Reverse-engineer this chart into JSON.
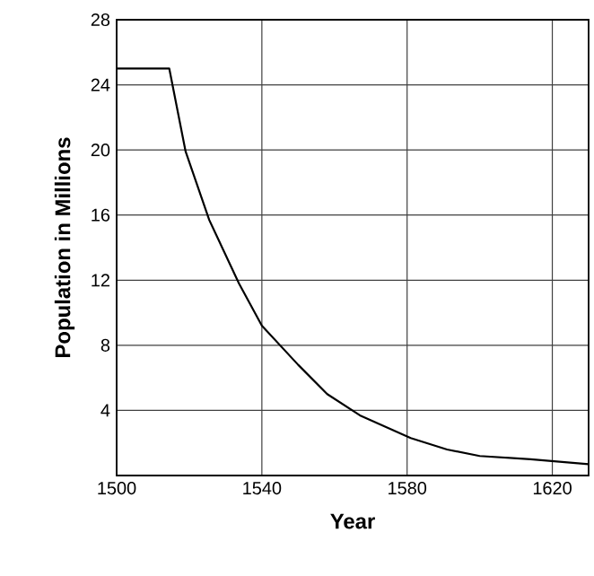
{
  "chart_data": {
    "type": "line",
    "xlabel": "Year",
    "ylabel": "Population in Millions",
    "x": [
      1500,
      1514.5,
      1519,
      1525.5,
      1533.7,
      1540,
      1550,
      1558,
      1567,
      1581,
      1591,
      1600,
      1614,
      1630
    ],
    "values": [
      25,
      25,
      19.9,
      15.7,
      11.8,
      9.2,
      6.8,
      5.0,
      3.7,
      2.3,
      1.6,
      1.2,
      1.0,
      0.7
    ],
    "color": "#000000",
    "xlim": [
      1500,
      1630
    ],
    "ylim": [
      0,
      28
    ],
    "xticks": [
      1500,
      1540,
      1580,
      1620
    ],
    "yticks": [
      4,
      8,
      12,
      16,
      20,
      24,
      28
    ],
    "grid": true,
    "marker": "none",
    "line_style": "solid"
  }
}
